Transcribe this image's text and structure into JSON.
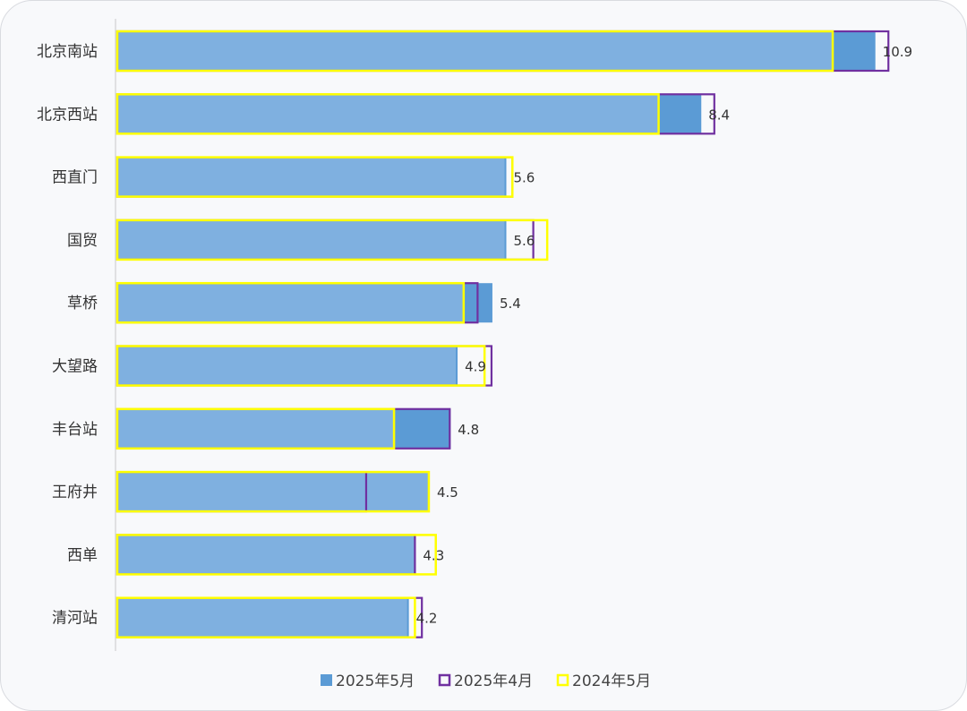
{
  "chart_data": {
    "type": "bar",
    "orientation": "horizontal",
    "categories": [
      "北京南站",
      "北京西站",
      "西直门",
      "国贸",
      "草桥",
      "大望路",
      "丰台站",
      "王府井",
      "西单",
      "清河站"
    ],
    "series": [
      {
        "name": "2025年5月",
        "style": "filled",
        "color": "#5b9bd5",
        "values": [
          10.9,
          8.4,
          5.6,
          5.6,
          5.4,
          4.9,
          4.8,
          4.5,
          4.3,
          4.2
        ]
      },
      {
        "name": "2025年4月",
        "style": "outline",
        "color": "#7030a0",
        "values": [
          11.1,
          8.6,
          5.7,
          6.0,
          5.2,
          5.4,
          4.8,
          3.6,
          4.3,
          4.4
        ]
      },
      {
        "name": "2024年5月",
        "style": "outline",
        "color": "#ffff00",
        "values": [
          10.3,
          7.8,
          5.7,
          6.2,
          5.0,
          5.3,
          4.0,
          4.5,
          4.6,
          4.3
        ]
      }
    ],
    "data_labels": [
      "10.9",
      "8.4",
      "5.6",
      "5.6",
      "5.4",
      "4.9",
      "4.8",
      "4.5",
      "4.3",
      "4.2"
    ],
    "xlim": [
      0,
      11.2
    ],
    "grid": false,
    "legend_position": "bottom"
  },
  "colors": {
    "bar_fill": "#5b9bd5",
    "axis": "#c8c8c8",
    "card_background": "#f8f9fb"
  }
}
